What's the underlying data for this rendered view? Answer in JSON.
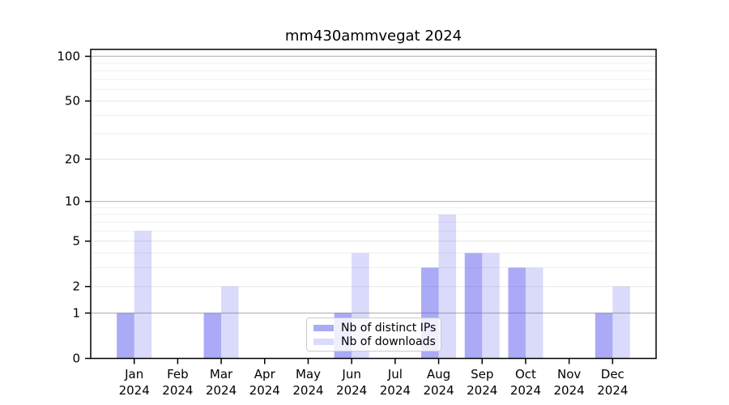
{
  "chart_data": {
    "type": "bar",
    "title": "mm430ammvegat 2024",
    "categories": [
      "Jan 2024",
      "Feb 2024",
      "Mar 2024",
      "Apr 2024",
      "May 2024",
      "Jun 2024",
      "Jul 2024",
      "Aug 2024",
      "Sep 2024",
      "Oct 2024",
      "Nov 2024",
      "Dec 2024"
    ],
    "series": [
      {
        "name": "Nb of distinct IPs",
        "color": "rgba(85,85,238,0.5)",
        "values": [
          1,
          0,
          1,
          0,
          0,
          1,
          0,
          3,
          4,
          3,
          0,
          1
        ]
      },
      {
        "name": "Nb of downloads",
        "color": "rgba(85,85,238,0.22)",
        "values": [
          6,
          0,
          2,
          0,
          0,
          4,
          0,
          8,
          4,
          3,
          0,
          2
        ]
      }
    ],
    "xlabel": "",
    "ylabel": "",
    "yscale": "log1p",
    "ylim": [
      0,
      110
    ],
    "ytick_values": [
      0,
      1,
      2,
      5,
      10,
      20,
      50,
      100
    ],
    "ytick_labels": [
      "0",
      "1",
      "2",
      "5",
      "10",
      "20",
      "50",
      "100"
    ],
    "grid": true,
    "minor_grid_values": [
      3,
      4,
      6,
      7,
      8,
      9,
      30,
      40,
      60,
      70,
      80,
      90
    ],
    "decade_grid_values": [
      1,
      10,
      100
    ],
    "legend_position": "lower center",
    "colors": {
      "bars_base": "#5555ee",
      "decade_gridline": "#b8b8b8",
      "major_gridline": "#e6e6e6",
      "minor_gridline": "#efefef",
      "axis": "#000000",
      "text": "#000000",
      "legend_border": "#cccccc"
    }
  }
}
